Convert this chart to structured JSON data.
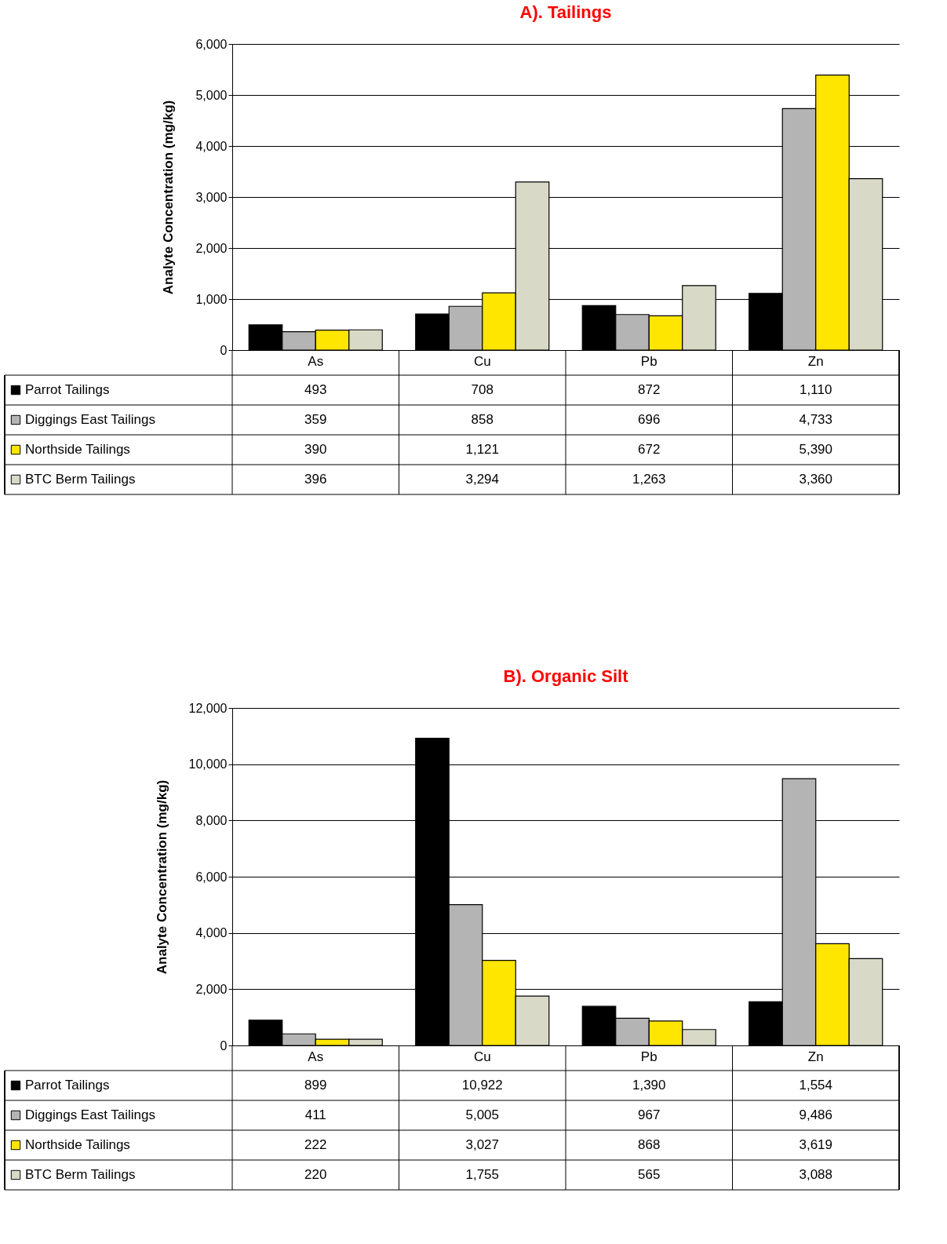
{
  "chart_data": [
    {
      "type": "bar",
      "title": "A).  Tailings",
      "ylabel": "Analyte Concentration (mg/kg)",
      "categories": [
        "As",
        "Cu",
        "Pb",
        "Zn"
      ],
      "series": [
        {
          "name": "Parrot Tailings",
          "color": "#000000",
          "values": [
            493,
            708,
            872,
            1110
          ],
          "value_labels": [
            "493",
            "708",
            "872",
            "1,110"
          ]
        },
        {
          "name": "Diggings East Tailings",
          "color": "#b4b4b4",
          "values": [
            359,
            858,
            696,
            4733
          ],
          "value_labels": [
            "359",
            "858",
            "696",
            "4,733"
          ]
        },
        {
          "name": "Northside Tailings",
          "color": "#ffe600",
          "values": [
            390,
            1121,
            672,
            5390
          ],
          "value_labels": [
            "390",
            "1,121",
            "672",
            "5,390"
          ]
        },
        {
          "name": "BTC Berm Tailings",
          "color": "#d9d9c8",
          "values": [
            396,
            3294,
            1263,
            3360
          ],
          "value_labels": [
            "396",
            "3,294",
            "1,263",
            "3,360"
          ]
        }
      ],
      "ylim": [
        0,
        6000
      ],
      "yticks": [
        {
          "value": 0,
          "label": "0"
        },
        {
          "value": 1000,
          "label": "1,000"
        },
        {
          "value": 2000,
          "label": "2,000"
        },
        {
          "value": 3000,
          "label": "3,000"
        },
        {
          "value": 4000,
          "label": "4,000"
        },
        {
          "value": 5000,
          "label": "5,000"
        },
        {
          "value": 6000,
          "label": "6,000"
        }
      ],
      "grid": "y",
      "legend": "bottom"
    },
    {
      "type": "bar",
      "title": "B).  Organic Silt",
      "ylabel": "Analyte Concentration (mg/kg)",
      "categories": [
        "As",
        "Cu",
        "Pb",
        "Zn"
      ],
      "series": [
        {
          "name": "Parrot Tailings",
          "color": "#000000",
          "values": [
            899,
            10922,
            1390,
            1554
          ],
          "value_labels": [
            "899",
            "10,922",
            "1,390",
            "1,554"
          ]
        },
        {
          "name": "Diggings East Tailings",
          "color": "#b4b4b4",
          "values": [
            411,
            5005,
            967,
            9486
          ],
          "value_labels": [
            "411",
            "5,005",
            "967",
            "9,486"
          ]
        },
        {
          "name": "Northside Tailings",
          "color": "#ffe600",
          "values": [
            222,
            3027,
            868,
            3619
          ],
          "value_labels": [
            "222",
            "3,027",
            "868",
            "3,619"
          ]
        },
        {
          "name": "BTC Berm Tailings",
          "color": "#d9d9c8",
          "values": [
            220,
            1755,
            565,
            3088
          ],
          "value_labels": [
            "220",
            "1,755",
            "565",
            "3,088"
          ]
        }
      ],
      "ylim": [
        0,
        12000
      ],
      "yticks": [
        {
          "value": 0,
          "label": "0"
        },
        {
          "value": 2000,
          "label": "2,000"
        },
        {
          "value": 4000,
          "label": "4,000"
        },
        {
          "value": 6000,
          "label": "6,000"
        },
        {
          "value": 8000,
          "label": "8,000"
        },
        {
          "value": 10000,
          "label": "10,000"
        },
        {
          "value": 12000,
          "label": "12,000"
        }
      ],
      "grid": "y",
      "legend": "bottom"
    }
  ]
}
